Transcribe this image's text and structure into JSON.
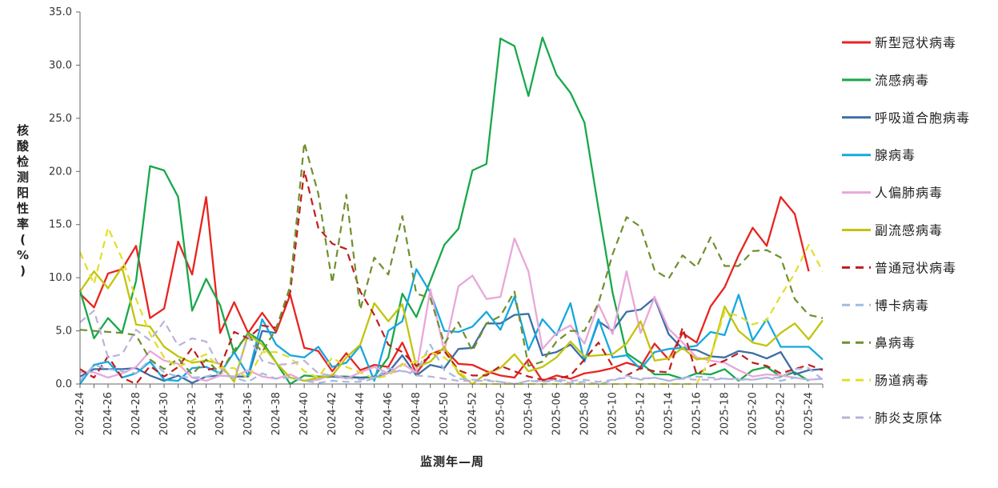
{
  "chart_data": {
    "type": "line",
    "xlabel": "监测年—周",
    "ylabel": "核酸检测阳性率(%)",
    "ylim": [
      0,
      35
    ],
    "yticks": [
      "0.0",
      "5.0",
      "10.0",
      "15.0",
      "20.0",
      "25.0",
      "30.0",
      "35.0"
    ],
    "categories": [
      "2024-24",
      "2024-25",
      "2024-26",
      "2024-27",
      "2024-28",
      "2024-29",
      "2024-30",
      "2024-31",
      "2024-32",
      "2024-33",
      "2024-34",
      "2024-35",
      "2024-36",
      "2024-37",
      "2024-38",
      "2024-39",
      "2024-40",
      "2024-41",
      "2024-42",
      "2024-43",
      "2024-44",
      "2024-45",
      "2024-46",
      "2024-47",
      "2024-48",
      "2024-49",
      "2024-50",
      "2024-51",
      "2024-52",
      "2025-01",
      "2025-02",
      "2025-03",
      "2025-04",
      "2025-05",
      "2025-06",
      "2025-07",
      "2025-08",
      "2025-09",
      "2025-10",
      "2025-11",
      "2025-12",
      "2025-13",
      "2025-14",
      "2025-15",
      "2025-16",
      "2025-17",
      "2025-18",
      "2025-19",
      "2025-20",
      "2025-21",
      "2025-22",
      "2025-23",
      "2025-24",
      "2025-25"
    ],
    "xtick_labels": [
      "2024-24",
      "2024-26",
      "2024-28",
      "2024-30",
      "2024-32",
      "2024-34",
      "2024-36",
      "2024-38",
      "2024-40",
      "2024-42",
      "2024-44",
      "2024-46",
      "2024-48",
      "2024-50",
      "2024-52",
      "2025-02",
      "2025-04",
      "2025-06",
      "2025-08",
      "2025-10",
      "2025-12",
      "2025-14",
      "2025-16",
      "2025-18",
      "2025-20",
      "2025-22",
      "2025-24"
    ],
    "legend_position": "right",
    "series": [
      {
        "name": "新型冠状病毒",
        "color": "#e8241f",
        "dash": "solid",
        "values": [
          8.5,
          7.2,
          10.4,
          10.8,
          13.0,
          6.2,
          7.1,
          13.4,
          10.3,
          17.6,
          4.8,
          7.7,
          4.8,
          6.7,
          4.9,
          8.4,
          3.4,
          3.1,
          1.2,
          2.9,
          1.3,
          1.8,
          1.6,
          3.9,
          1.0,
          2.8,
          3.3,
          1.9,
          1.8,
          1.2,
          0.8,
          0.6,
          2.3,
          0.3,
          0.8,
          0.5,
          1.0,
          1.2,
          1.5,
          2.0,
          1.6,
          3.8,
          2.3,
          4.8,
          3.9,
          7.3,
          9.1,
          12.1,
          14.7,
          13.0,
          17.6,
          16.0,
          10.6,
          null
        ]
      },
      {
        "name": "流感病毒",
        "color": "#18a84a",
        "dash": "solid",
        "values": [
          8.8,
          4.3,
          6.2,
          4.8,
          9.7,
          20.5,
          20.1,
          17.6,
          6.9,
          9.9,
          7.4,
          2.9,
          4.8,
          4.0,
          2.0,
          0.0,
          0.8,
          0.7,
          0.7,
          0.7,
          0.6,
          0.7,
          2.5,
          8.5,
          6.3,
          9.7,
          13.1,
          14.6,
          20.1,
          20.7,
          32.5,
          31.8,
          27.1,
          32.6,
          29.1,
          27.4,
          24.6,
          16.5,
          8.6,
          2.9,
          2.0,
          0.9,
          0.9,
          0.5,
          1.0,
          0.9,
          1.4,
          0.3,
          1.3,
          1.6,
          0.7,
          1.1,
          0.3,
          null
        ]
      },
      {
        "name": "呼吸道合胞病毒",
        "color": "#3c6ea7",
        "dash": "solid",
        "values": [
          0.7,
          1.4,
          1.4,
          1.4,
          1.5,
          0.8,
          0.3,
          0.8,
          0.1,
          0.7,
          0.8,
          0.7,
          0.7,
          5.0,
          4.8,
          null,
          null,
          0.6,
          0.7,
          0.6,
          0.6,
          0.6,
          1.1,
          2.7,
          0.8,
          1.8,
          1.5,
          3.3,
          3.4,
          5.7,
          5.7,
          6.5,
          6.6,
          2.7,
          3.0,
          3.7,
          2.2,
          5.9,
          5.0,
          6.8,
          7.0,
          8.1,
          4.7,
          3.3,
          3.2,
          2.6,
          2.5,
          3.1,
          2.9,
          2.4,
          3.0,
          0.9,
          1.3,
          1.4
        ]
      },
      {
        "name": "腺病毒",
        "color": "#15a8e0",
        "dash": "solid",
        "values": [
          0.0,
          1.8,
          2.1,
          0.6,
          1.0,
          2.1,
          0.4,
          0.3,
          1.5,
          1.6,
          1.0,
          3.0,
          0.8,
          6.1,
          3.7,
          2.7,
          2.5,
          3.5,
          1.6,
          2.0,
          3.6,
          0.3,
          5.0,
          5.9,
          10.8,
          8.6,
          5.0,
          4.9,
          5.4,
          6.8,
          5.1,
          8.2,
          3.2,
          6.1,
          4.6,
          7.6,
          2.1,
          6.1,
          2.5,
          2.7,
          1.4,
          3.0,
          3.3,
          3.4,
          3.6,
          4.9,
          4.6,
          8.4,
          4.1,
          6.1,
          3.5,
          3.5,
          3.5,
          2.3
        ]
      },
      {
        "name": "人偏肺病毒",
        "color": "#e9a7d8",
        "dash": "solid",
        "values": [
          1.1,
          1.1,
          0.6,
          1.0,
          1.6,
          3.1,
          2.2,
          1.9,
          0.6,
          0.3,
          0.8,
          0.7,
          1.3,
          0.7,
          0.5,
          0.9,
          0.3,
          0.4,
          0.9,
          0.5,
          1.1,
          1.6,
          1.0,
          1.9,
          1.1,
          8.9,
          3.1,
          9.2,
          10.2,
          8.0,
          8.2,
          13.7,
          10.6,
          3.3,
          4.8,
          5.5,
          3.8,
          7.5,
          4.7,
          10.6,
          4.8,
          8.2,
          5.2,
          3.9,
          2.5,
          2.2,
          2.0,
          1.3,
          0.7,
          0.9,
          0.8,
          0.6,
          0.4,
          0.5
        ]
      },
      {
        "name": "副流感病毒",
        "color": "#c2c40c",
        "dash": "solid",
        "values": [
          8.7,
          10.6,
          9.0,
          11.0,
          5.6,
          5.4,
          3.5,
          2.6,
          2.0,
          2.2,
          1.9,
          0.2,
          4.7,
          3.7,
          2.0,
          0.6,
          0.3,
          0.6,
          0.8,
          2.5,
          3.7,
          7.6,
          5.9,
          7.5,
          1.6,
          2.1,
          3.5,
          1.0,
          0.0,
          1.0,
          1.5,
          2.8,
          1.2,
          1.6,
          2.5,
          4.0,
          2.6,
          2.7,
          2.8,
          3.8,
          5.9,
          2.2,
          2.4,
          3.4,
          2.3,
          2.5,
          7.3,
          5.0,
          3.9,
          3.6,
          4.8,
          5.7,
          4.2,
          6.0
        ]
      },
      {
        "name": "普通冠状病毒",
        "color": "#c01c1c",
        "dash": "dash",
        "values": [
          1.4,
          0.6,
          2.6,
          0.6,
          0.0,
          1.7,
          0.7,
          1.6,
          3.4,
          1.3,
          1.6,
          4.9,
          4.3,
          5.5,
          5.3,
          8.6,
          20.1,
          14.7,
          13.2,
          12.7,
          8.7,
          6.5,
          3.7,
          3.0,
          1.7,
          2.6,
          3.1,
          1.3,
          0.8,
          0.8,
          1.7,
          1.2,
          0.7,
          0.4,
          0.5,
          0.8,
          2.3,
          3.9,
          1.7,
          0.8,
          1.5,
          1.2,
          1.1,
          5.3,
          0.9,
          1.7,
          2.2,
          2.9,
          2.0,
          1.7,
          1.0,
          1.4,
          1.8,
          1.3
        ]
      },
      {
        "name": "博卡病毒",
        "color": "#9fbde0",
        "dash": "dash",
        "values": [
          0.3,
          1.8,
          1.4,
          1.2,
          1.0,
          2.3,
          1.1,
          0.7,
          0.6,
          0.7,
          1.1,
          0.6,
          0.2,
          1.0,
          0.5,
          0.6,
          0.3,
          0.1,
          0.3,
          0.2,
          0.2,
          0.5,
          1.5,
          1.2,
          1.1,
          3.7,
          1.3,
          0.5,
          0.4,
          0.4,
          0.2,
          0.0,
          0.3,
          0.2,
          0.3,
          0.1,
          0.2,
          0.0,
          0.3,
          0.8,
          0.4,
          0.6,
          0.3,
          0.6,
          0.7,
          0.6,
          0.5,
          0.5,
          0.4,
          0.6,
          0.3,
          0.6,
          0.4,
          0.5
        ]
      },
      {
        "name": "鼻病毒",
        "color": "#6f8f2e",
        "dash": "dash",
        "values": [
          5.1,
          5.0,
          4.9,
          4.8,
          4.6,
          2.3,
          1.4,
          2.4,
          0.9,
          2.3,
          1.0,
          3.2,
          4.6,
          3.0,
          5.2,
          9.2,
          22.7,
          17.9,
          9.5,
          17.8,
          7.0,
          11.9,
          10.3,
          15.8,
          8.5,
          8.1,
          3.8,
          5.8,
          3.1,
          5.7,
          6.4,
          8.7,
          1.7,
          2.1,
          4.0,
          5.0,
          5.0,
          7.6,
          12.2,
          15.7,
          14.8,
          10.7,
          9.9,
          12.1,
          11.0,
          13.8,
          11.1,
          11.1,
          12.5,
          12.6,
          11.9,
          8.0,
          6.5,
          6.2
        ]
      },
      {
        "name": "肠道病毒",
        "color": "#e2de2a",
        "dash": "dash",
        "values": [
          12.4,
          9.4,
          14.7,
          11.8,
          8.0,
          4.7,
          2.5,
          1.6,
          2.2,
          2.8,
          1.5,
          1.5,
          0.5,
          3.0,
          3.0,
          2.5,
          1.2,
          0.6,
          2.5,
          1.6,
          1.1,
          0.5,
          0.8,
          1.8,
          2.1,
          3.0,
          2.5,
          1.3,
          0.0,
          0.0,
          0.0,
          0.0,
          0.0,
          0.0,
          0.0,
          0.0,
          0.0,
          0.0,
          0.0,
          0.0,
          0.0,
          0.0,
          0.0,
          0.0,
          0.0,
          2.5,
          6.8,
          6.4,
          5.6,
          6.0,
          8.3,
          10.4,
          13.1,
          10.6
        ]
      },
      {
        "name": "肺炎支原体",
        "color": "#bcb0dc",
        "dash": "dash",
        "values": [
          5.8,
          6.9,
          2.5,
          2.8,
          5.1,
          4.1,
          5.9,
          3.6,
          4.3,
          4.0,
          1.5,
          0.5,
          4.5,
          2.2,
          1.8,
          1.9,
          2.2,
          1.0,
          0.8,
          0.6,
          0.4,
          0.6,
          1.0,
          1.3,
          0.8,
          0.7,
          0.5,
          0.3,
          0.3,
          0.3,
          0.2,
          0.0,
          0.3,
          0.3,
          0.4,
          0.3,
          0.4,
          0.2,
          0.4,
          0.6,
          0.5,
          0.6,
          0.3,
          0.5,
          0.4,
          0.4,
          0.5,
          0.4,
          0.4,
          0.6,
          0.6,
          1.4,
          1.5,
          0.4
        ]
      }
    ]
  }
}
